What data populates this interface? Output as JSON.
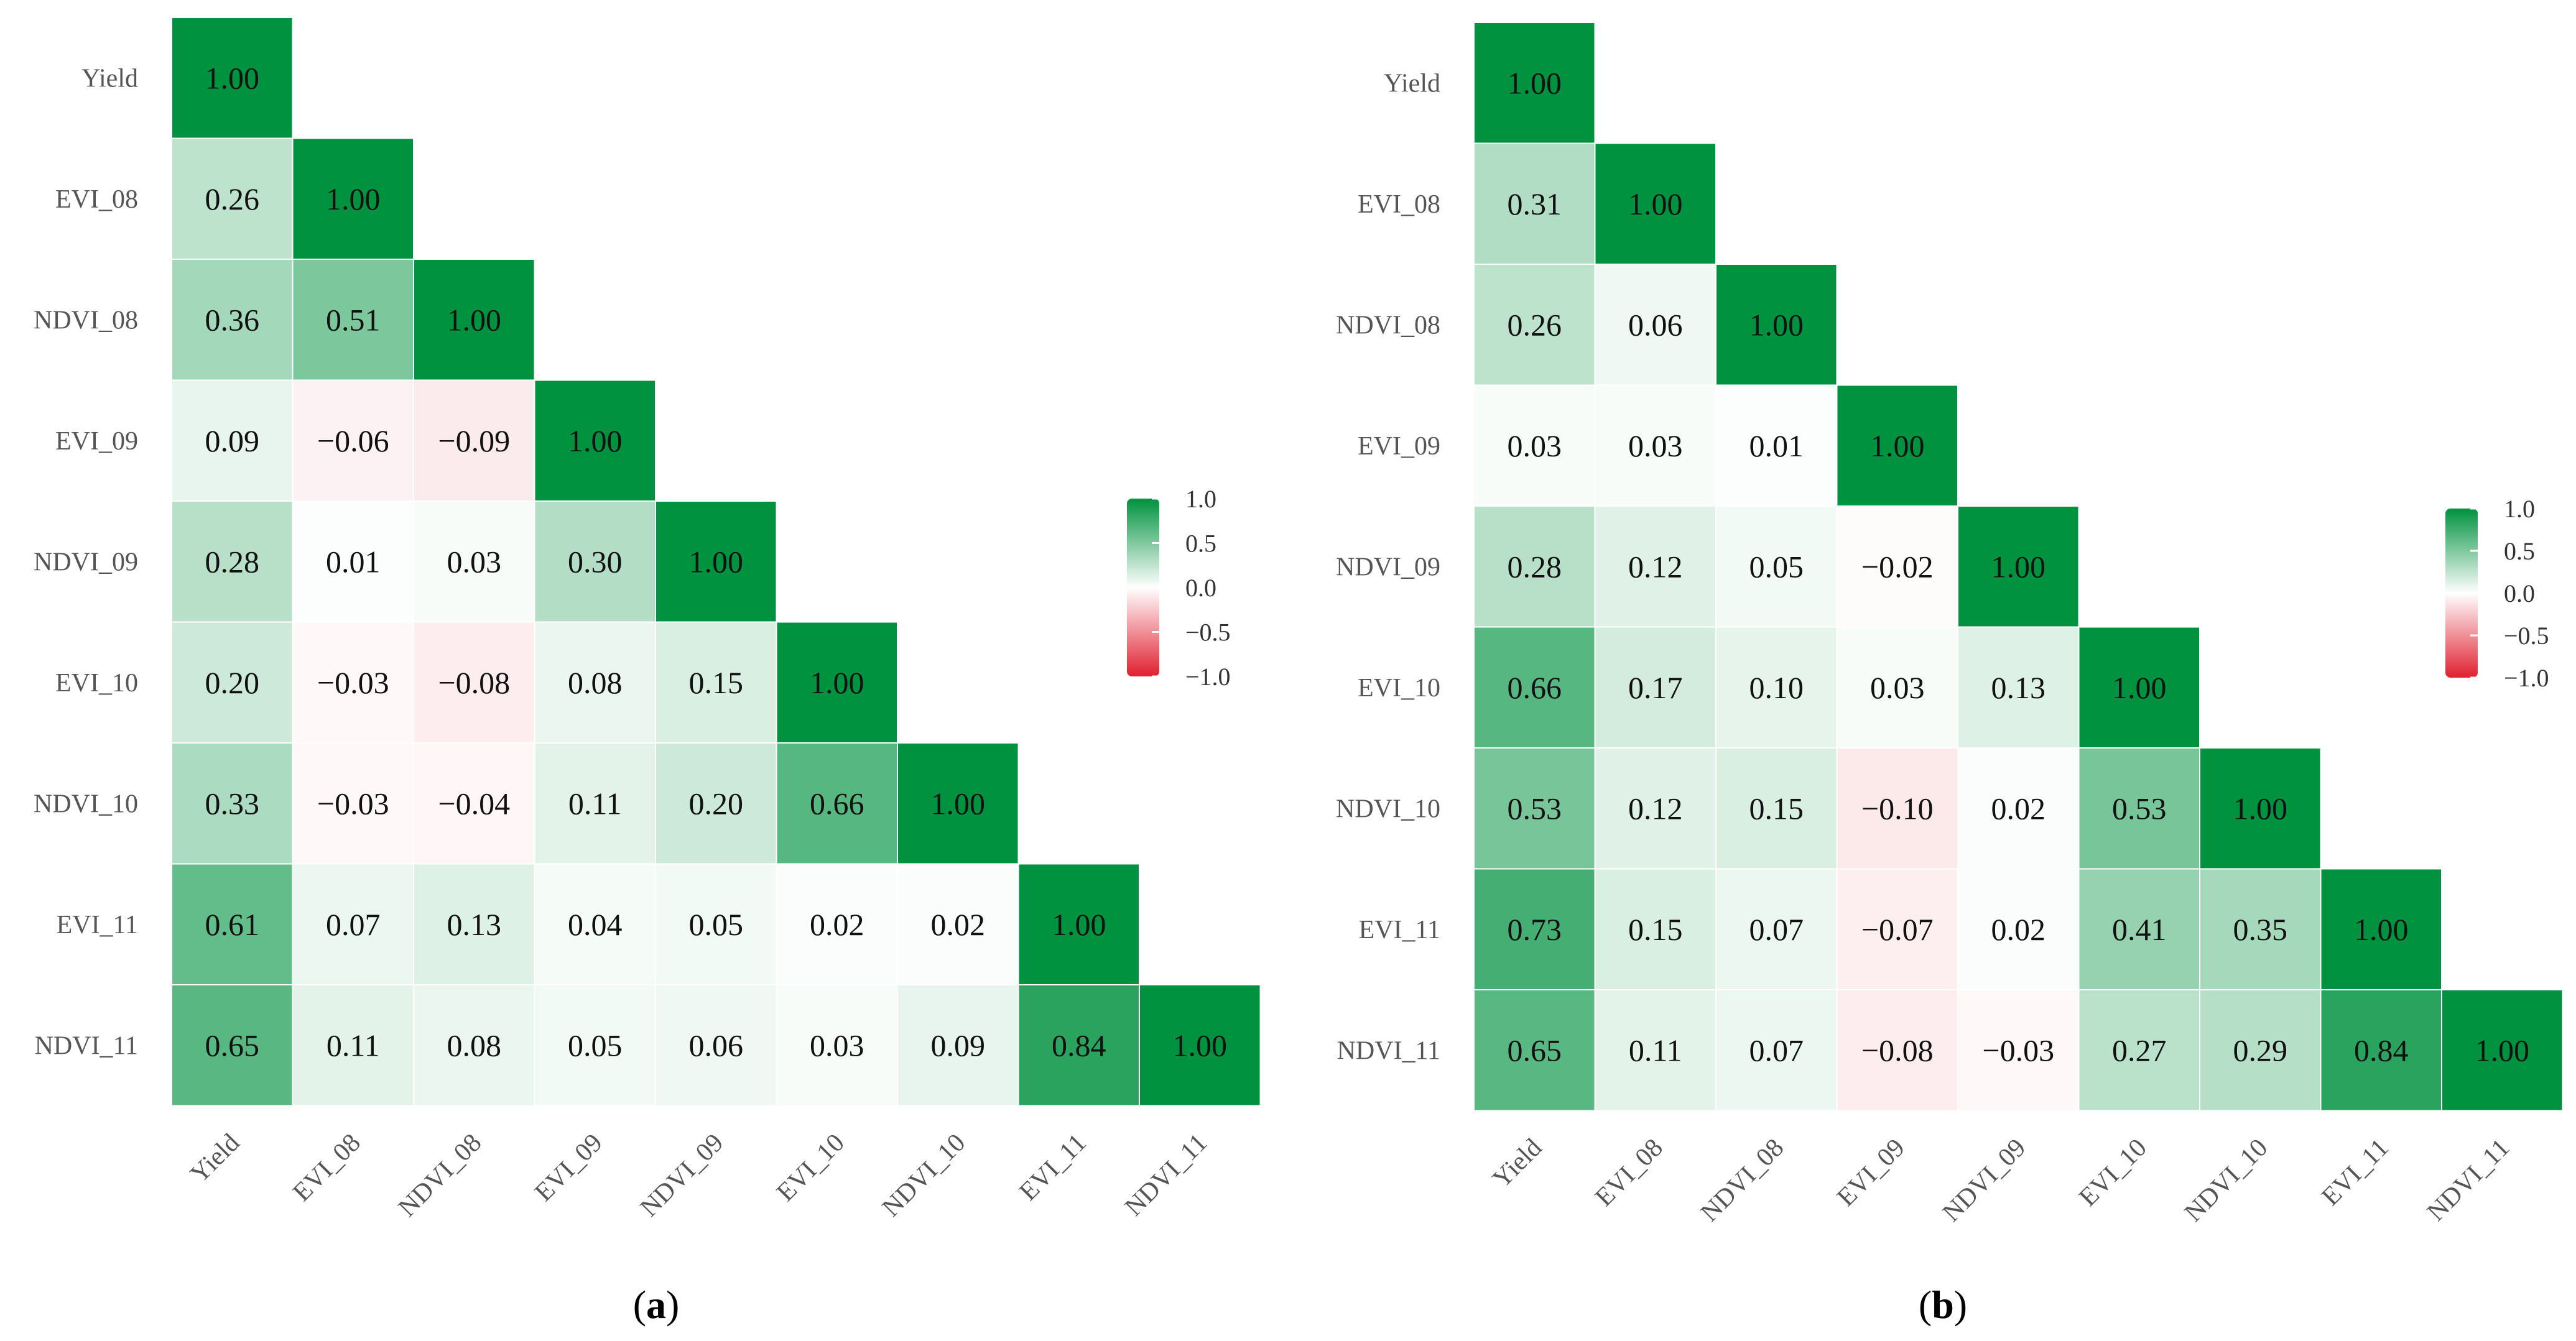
{
  "chart_data": [
    {
      "type": "heatmap",
      "panel_label": "a",
      "variables": [
        "Yield",
        "EVI_08",
        "NDVI_08",
        "EVI_09",
        "NDVI_09",
        "EVI_10",
        "NDVI_10",
        "EVI_11",
        "NDVI_11"
      ],
      "matrix": [
        [
          1.0
        ],
        [
          0.26,
          1.0
        ],
        [
          0.36,
          0.51,
          1.0
        ],
        [
          0.09,
          -0.06,
          -0.09,
          1.0
        ],
        [
          0.28,
          0.01,
          0.03,
          0.3,
          1.0
        ],
        [
          0.2,
          -0.03,
          -0.08,
          0.08,
          0.15,
          1.0
        ],
        [
          0.33,
          -0.03,
          -0.04,
          0.11,
          0.2,
          0.66,
          1.0
        ],
        [
          0.61,
          0.07,
          0.13,
          0.04,
          0.05,
          0.02,
          0.02,
          1.0
        ],
        [
          0.65,
          0.11,
          0.08,
          0.05,
          0.06,
          0.03,
          0.09,
          0.84,
          1.0
        ]
      ],
      "color_scale": {
        "min": -1.0,
        "max": 1.0,
        "ticks": [
          "1.0",
          "0.5",
          "0.0",
          "−0.5",
          "−1.0"
        ]
      }
    },
    {
      "type": "heatmap",
      "panel_label": "b",
      "variables": [
        "Yield",
        "EVI_08",
        "NDVI_08",
        "EVI_09",
        "NDVI_09",
        "EVI_10",
        "NDVI_10",
        "EVI_11",
        "NDVI_11"
      ],
      "matrix": [
        [
          1.0
        ],
        [
          0.31,
          1.0
        ],
        [
          0.26,
          0.06,
          1.0
        ],
        [
          0.03,
          0.03,
          0.01,
          1.0
        ],
        [
          0.28,
          0.12,
          0.05,
          -0.02,
          1.0
        ],
        [
          0.66,
          0.17,
          0.1,
          0.03,
          0.13,
          1.0
        ],
        [
          0.53,
          0.12,
          0.15,
          -0.1,
          0.02,
          0.53,
          1.0
        ],
        [
          0.73,
          0.15,
          0.07,
          -0.07,
          0.02,
          0.41,
          0.35,
          1.0
        ],
        [
          0.65,
          0.11,
          0.07,
          -0.08,
          -0.03,
          0.27,
          0.29,
          0.84,
          1.0
        ]
      ],
      "color_scale": {
        "min": -1.0,
        "max": 1.0,
        "ticks": [
          "1.0",
          "0.5",
          "0.0",
          "−0.5",
          "−1.0"
        ]
      }
    }
  ],
  "colors": {
    "high": "#00923f",
    "mid": "#ffffff",
    "low": "#e0202f"
  }
}
